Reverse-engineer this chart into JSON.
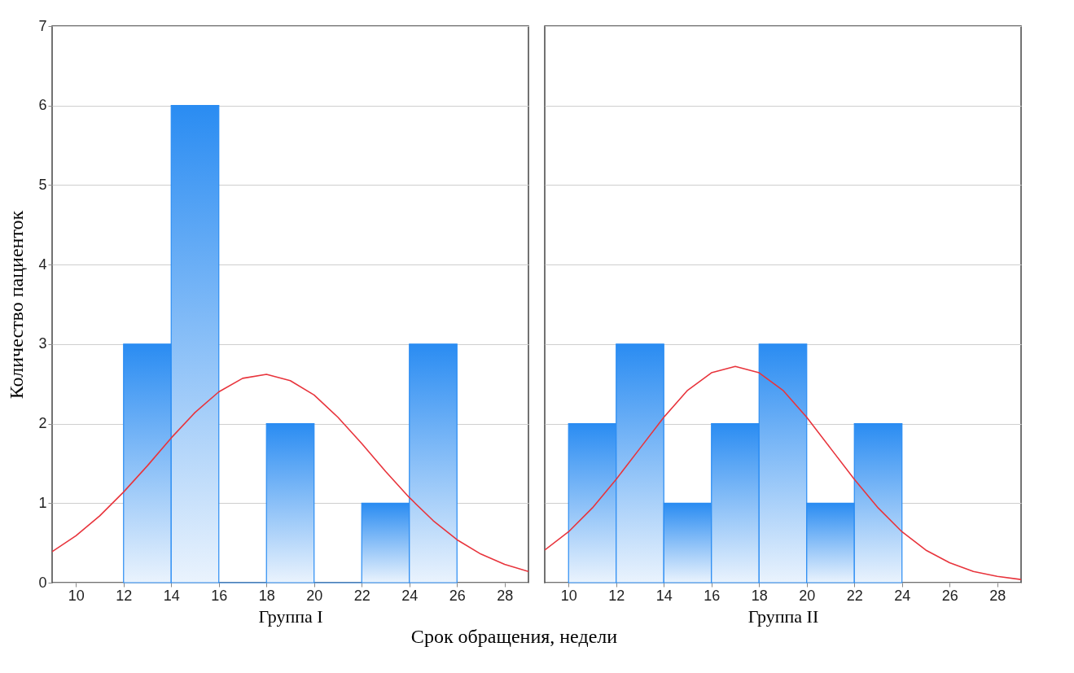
{
  "chart_data": [
    {
      "type": "histogram",
      "xlabel": "Группа I",
      "ylabel": "Количество пациенток",
      "annotations": [
        "Срок обращения, недели"
      ],
      "bins": [
        12,
        14,
        16,
        18,
        20,
        22,
        24,
        26
      ],
      "values": [
        3,
        6,
        0,
        2,
        0,
        1,
        3
      ],
      "color": "#2a8cf2",
      "xlim": [
        9,
        29
      ],
      "xticks": [
        10,
        12,
        14,
        16,
        18,
        20,
        22,
        24,
        26,
        28
      ],
      "ylim": [
        0,
        7
      ],
      "yticks": [
        0,
        1,
        2,
        3,
        4,
        5,
        6,
        7
      ],
      "grid": "y",
      "series": [
        {
          "type": "line",
          "color": "#e8343c",
          "x": [
            9,
            10,
            11,
            12,
            13,
            14,
            15,
            16,
            17,
            18,
            19,
            20,
            21,
            22,
            23,
            24,
            25,
            26,
            27,
            28,
            29
          ],
          "values": [
            0.39,
            0.59,
            0.84,
            1.14,
            1.47,
            1.82,
            2.14,
            2.4,
            2.57,
            2.62,
            2.54,
            2.36,
            2.08,
            1.75,
            1.4,
            1.07,
            0.78,
            0.54,
            0.36,
            0.23,
            0.14
          ]
        }
      ]
    },
    {
      "type": "histogram",
      "xlabel": "Группа II",
      "bins": [
        10,
        12,
        14,
        16,
        18,
        20,
        22,
        24
      ],
      "values": [
        2,
        3,
        1,
        2,
        3,
        1,
        2
      ],
      "color": "#2a8cf2",
      "xlim": [
        9,
        29
      ],
      "xticks": [
        10,
        12,
        14,
        16,
        18,
        20,
        22,
        24,
        26,
        28
      ],
      "ylim": [
        0,
        7
      ],
      "yticks": [
        0,
        1,
        2,
        3,
        4,
        5,
        6,
        7
      ],
      "grid": "y",
      "tick_labels": "x",
      "series": [
        {
          "type": "line",
          "color": "#e8343c",
          "x": [
            9,
            10,
            11,
            12,
            13,
            14,
            15,
            16,
            17,
            18,
            19,
            20,
            21,
            22,
            23,
            24,
            25,
            26,
            27,
            28,
            29
          ],
          "values": [
            0.41,
            0.64,
            0.94,
            1.3,
            1.69,
            2.08,
            2.42,
            2.64,
            2.72,
            2.64,
            2.42,
            2.08,
            1.69,
            1.3,
            0.94,
            0.64,
            0.41,
            0.25,
            0.14,
            0.08,
            0.04
          ]
        }
      ]
    }
  ]
}
